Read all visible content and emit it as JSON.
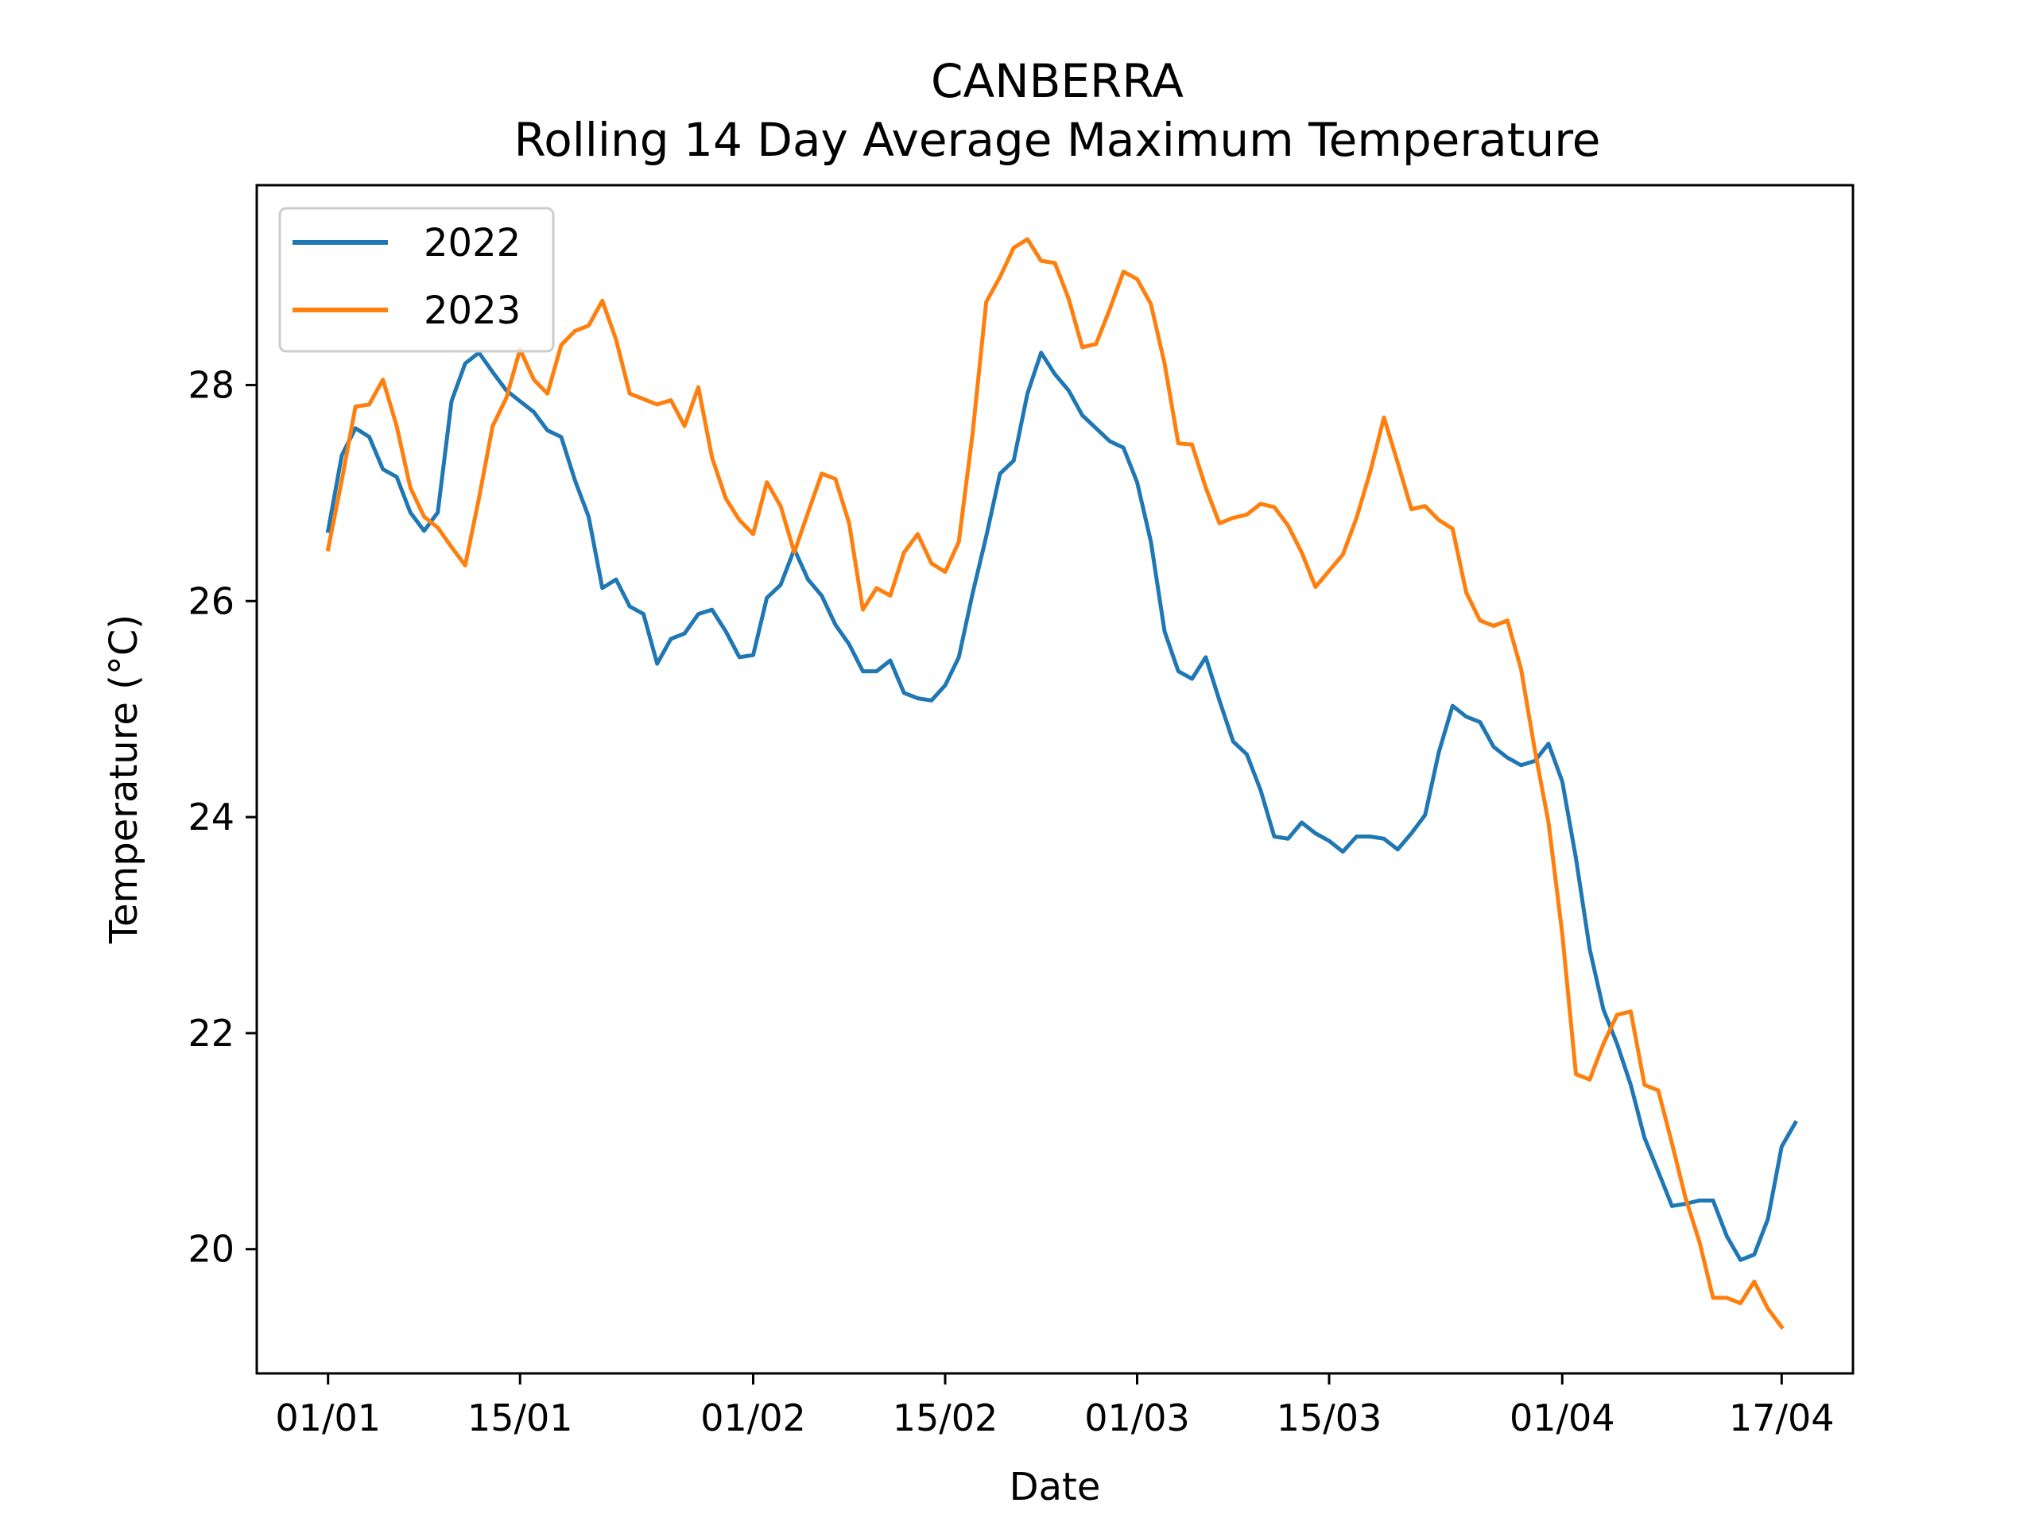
{
  "chart_data": {
    "type": "line",
    "title": "CANBERRA",
    "subtitle": "Rolling 14 Day Average Maximum Temperature",
    "xlabel": "Date",
    "ylabel": "Temperature (°C)",
    "x_tick_labels": [
      "01/01",
      "15/01",
      "01/02",
      "15/02",
      "01/03",
      "15/03",
      "01/04",
      "17/04"
    ],
    "x_tick_days": [
      1,
      15,
      32,
      46,
      60,
      74,
      91,
      107
    ],
    "y_ticks": [
      20,
      22,
      24,
      26,
      28
    ],
    "xlim": [
      -4.2,
      112.2
    ],
    "ylim": [
      18.85,
      29.85
    ],
    "legend": "top-left",
    "grid": false,
    "x_unit": "day of year",
    "series": [
      {
        "name": "2022",
        "color": "#1f77b4",
        "values": [
          26.65,
          27.35,
          27.6,
          27.52,
          27.22,
          27.15,
          26.82,
          26.65,
          26.82,
          27.85,
          28.2,
          28.3,
          28.12,
          27.95,
          27.85,
          27.75,
          27.58,
          27.52,
          27.12,
          26.78,
          26.12,
          26.2,
          25.95,
          25.88,
          25.42,
          25.65,
          25.7,
          25.88,
          25.92,
          25.72,
          25.48,
          25.5,
          26.03,
          26.15,
          26.48,
          26.2,
          26.05,
          25.78,
          25.6,
          25.35,
          25.35,
          25.45,
          25.15,
          25.1,
          25.08,
          25.22,
          25.48,
          26.07,
          26.6,
          27.18,
          27.3,
          27.92,
          28.3,
          28.1,
          27.95,
          27.72,
          27.6,
          27.48,
          27.42,
          27.1,
          26.55,
          25.72,
          25.35,
          25.28,
          25.48,
          25.08,
          24.7,
          24.58,
          24.25,
          23.82,
          23.8,
          23.95,
          23.85,
          23.78,
          23.68,
          23.82,
          23.82,
          23.8,
          23.7,
          23.85,
          24.02,
          24.6,
          25.03,
          24.93,
          24.88,
          24.65,
          24.55,
          24.48,
          24.52,
          24.68,
          24.33,
          23.62,
          22.78,
          22.22,
          21.9,
          21.52,
          21.03,
          20.72,
          20.4,
          20.42,
          20.45,
          20.45,
          20.12,
          19.9,
          19.95,
          20.28,
          20.95,
          21.17
        ]
      },
      {
        "name": "2023",
        "color": "#ff7f0e",
        "values": [
          26.48,
          27.12,
          27.8,
          27.82,
          28.05,
          27.62,
          27.05,
          26.78,
          26.68,
          26.5,
          26.33,
          26.95,
          27.62,
          27.88,
          28.33,
          28.05,
          27.92,
          28.37,
          28.5,
          28.55,
          28.78,
          28.42,
          27.92,
          27.87,
          27.82,
          27.86,
          27.62,
          27.98,
          27.33,
          26.95,
          26.75,
          26.62,
          27.1,
          26.88,
          26.45,
          26.82,
          27.18,
          27.13,
          26.72,
          25.92,
          26.12,
          26.05,
          26.45,
          26.62,
          26.35,
          26.27,
          26.55,
          27.55,
          28.77,
          29.0,
          29.27,
          29.35,
          29.15,
          29.13,
          28.8,
          28.35,
          28.38,
          28.7,
          29.05,
          28.98,
          28.75,
          28.2,
          27.46,
          27.45,
          27.05,
          26.72,
          26.77,
          26.8,
          26.9,
          26.87,
          26.7,
          26.45,
          26.13,
          26.28,
          26.43,
          26.77,
          27.2,
          27.7,
          27.28,
          26.85,
          26.88,
          26.75,
          26.67,
          26.08,
          25.82,
          25.77,
          25.82,
          25.37,
          24.62,
          23.95,
          22.92,
          21.62,
          21.57,
          21.9,
          22.17,
          22.2,
          21.52,
          21.47,
          20.98,
          20.47,
          20.07,
          19.55,
          19.55,
          19.5,
          19.7,
          19.45,
          19.28
        ]
      }
    ]
  }
}
